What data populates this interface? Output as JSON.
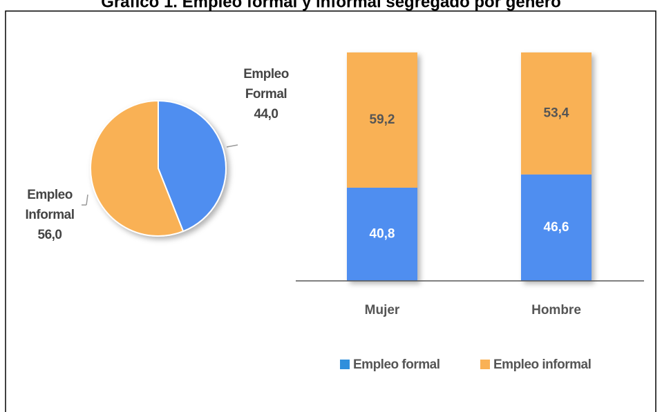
{
  "title": "Gráfico 1. Empleo formal y informal segregado por género",
  "chart_data": [
    {
      "type": "pie",
      "categories": [
        "Empleo Formal",
        "Empleo Informal"
      ],
      "values": [
        44.0,
        56.0
      ],
      "value_labels": [
        "44,0",
        "56,0"
      ],
      "colors": [
        "#4f8ef0",
        "#f9b155"
      ]
    },
    {
      "type": "bar",
      "stacked": true,
      "categories": [
        "Mujer",
        "Hombre"
      ],
      "ylim": [
        0,
        100
      ],
      "legend": "bottom",
      "series": [
        {
          "name": "Empleo formal",
          "color": "#4f8ef0",
          "legend_color": "#2f8fdc",
          "values": [
            40.8,
            46.6
          ],
          "value_labels": [
            "40,8",
            "46,6"
          ]
        },
        {
          "name": "Empleo informal",
          "color": "#f9b155",
          "legend_color": "#f9b155",
          "values": [
            59.2,
            53.4
          ],
          "value_labels": [
            "59,2",
            "53,4"
          ]
        }
      ]
    }
  ]
}
